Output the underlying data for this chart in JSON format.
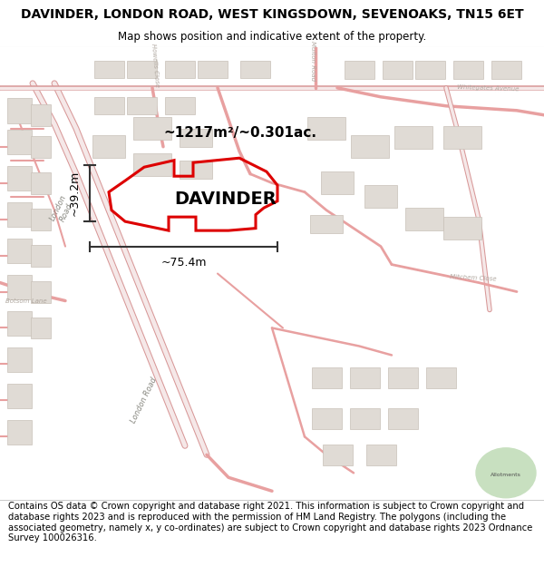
{
  "title": "DAVINDER, LONDON ROAD, WEST KINGSDOWN, SEVENOAKS, TN15 6ET",
  "subtitle": "Map shows position and indicative extent of the property.",
  "footer": "Contains OS data © Crown copyright and database right 2021. This information is subject to Crown copyright and database rights 2023 and is reproduced with the permission of HM Land Registry. The polygons (including the associated geometry, namely x, y co-ordinates) are subject to Crown copyright and database rights 2023 Ordnance Survey 100026316.",
  "area_label": "~1217m²/~0.301ac.",
  "name_label": "DAVINDER",
  "width_label": "~75.4m",
  "height_label": "~39.2m",
  "road_thin_color": "#e8a0a0",
  "road_thin_lw": 0.8,
  "road_thick_color": "#e8a0a0",
  "building_fill": "#e0dbd5",
  "building_edge": "#c8c0b8",
  "prop_edge": "#dd0000",
  "prop_fill": "none",
  "dim_color": "#333333",
  "allot_color": "#c8e0c0",
  "street_label_color": "#b0a8a0",
  "title_fontsize": 10,
  "subtitle_fontsize": 8.5,
  "area_fontsize": 11,
  "name_fontsize": 14,
  "dim_fontsize": 9,
  "street_fontsize": 5.5,
  "footer_fontsize": 7.2
}
